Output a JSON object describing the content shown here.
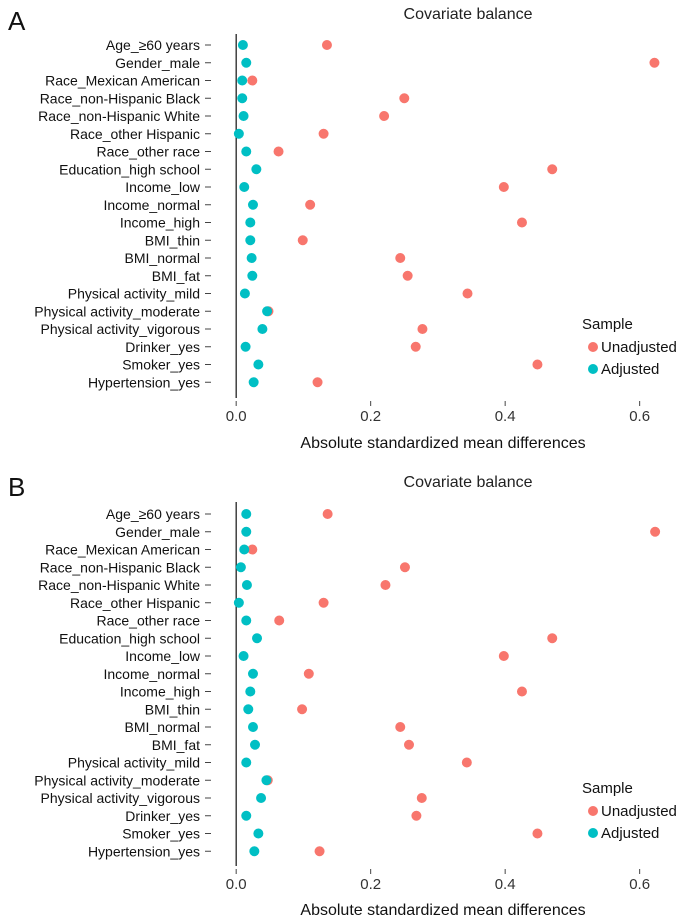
{
  "figure": {
    "panels": [
      "A",
      "B"
    ]
  },
  "chart_data": [
    {
      "panel": "A",
      "type": "scatter",
      "title": "Covariate balance",
      "xlabel": "Absolute standardized mean differences",
      "ylabel": "",
      "xlim": [
        -0.03,
        0.66
      ],
      "xticks": [
        0.0,
        0.2,
        0.4,
        0.6
      ],
      "xtick_labels": [
        "0.0",
        "0.2",
        "0.4",
        "0.6"
      ],
      "reference_line_x": 0,
      "grid": false,
      "legend": {
        "title": "Sample",
        "position": "bottom-right",
        "entries": [
          "Unadjusted",
          "Adjusted"
        ]
      },
      "categories": [
        "Age_≥60 years",
        "Gender_male",
        "Race_Mexican American",
        "Race_non-Hispanic Black",
        "Race_non-Hispanic White",
        "Race_other Hispanic",
        "Race_other race",
        "Education_high school",
        "Income_low",
        "Income_normal",
        "Income_high",
        "BMI_thin",
        "BMI_normal",
        "BMI_fat",
        "Physical activity_mild",
        "Physical activity_moderate",
        "Physical activity_vigorous",
        "Drinker_yes",
        "Smoker_yes",
        "Hypertension_yes"
      ],
      "series": [
        {
          "name": "Unadjusted",
          "color": "#F8766D",
          "values": [
            0.135,
            0.622,
            0.024,
            0.25,
            0.22,
            0.13,
            0.063,
            0.47,
            0.398,
            0.11,
            0.425,
            0.099,
            0.244,
            0.255,
            0.344,
            0.048,
            0.277,
            0.267,
            0.448,
            0.121
          ]
        },
        {
          "name": "Adjusted",
          "color": "#00BFC4",
          "values": [
            0.01,
            0.015,
            0.009,
            0.009,
            0.011,
            0.004,
            0.015,
            0.03,
            0.012,
            0.025,
            0.021,
            0.021,
            0.023,
            0.024,
            0.013,
            0.046,
            0.039,
            0.014,
            0.033,
            0.026
          ]
        }
      ]
    },
    {
      "panel": "B",
      "type": "scatter",
      "title": "Covariate balance",
      "xlabel": "Absolute standardized mean differences",
      "ylabel": "",
      "xlim": [
        -0.03,
        0.66
      ],
      "xticks": [
        0.0,
        0.2,
        0.4,
        0.6
      ],
      "xtick_labels": [
        "0.0",
        "0.2",
        "0.4",
        "0.6"
      ],
      "reference_line_x": 0,
      "grid": false,
      "legend": {
        "title": "Sample",
        "position": "bottom-right",
        "entries": [
          "Unadjusted",
          "Adjusted"
        ]
      },
      "categories": [
        "Age_≥60 years",
        "Gender_male",
        "Race_Mexican American",
        "Race_non-Hispanic Black",
        "Race_non-Hispanic White",
        "Race_other Hispanic",
        "Race_other race",
        "Education_high school",
        "Income_low",
        "Income_normal",
        "Income_high",
        "BMI_thin",
        "BMI_normal",
        "BMI_fat",
        "Physical activity_mild",
        "Physical activity_moderate",
        "Physical activity_vigorous",
        "Drinker_yes",
        "Smoker_yes",
        "Hypertension_yes"
      ],
      "series": [
        {
          "name": "Unadjusted",
          "color": "#F8766D",
          "values": [
            0.136,
            0.623,
            0.024,
            0.251,
            0.222,
            0.13,
            0.064,
            0.47,
            0.398,
            0.108,
            0.425,
            0.098,
            0.244,
            0.257,
            0.343,
            0.047,
            0.276,
            0.268,
            0.448,
            0.124
          ]
        },
        {
          "name": "Adjusted",
          "color": "#00BFC4",
          "values": [
            0.015,
            0.015,
            0.012,
            0.007,
            0.016,
            0.004,
            0.015,
            0.031,
            0.011,
            0.025,
            0.021,
            0.018,
            0.025,
            0.028,
            0.015,
            0.045,
            0.037,
            0.015,
            0.033,
            0.027
          ]
        }
      ]
    }
  ]
}
